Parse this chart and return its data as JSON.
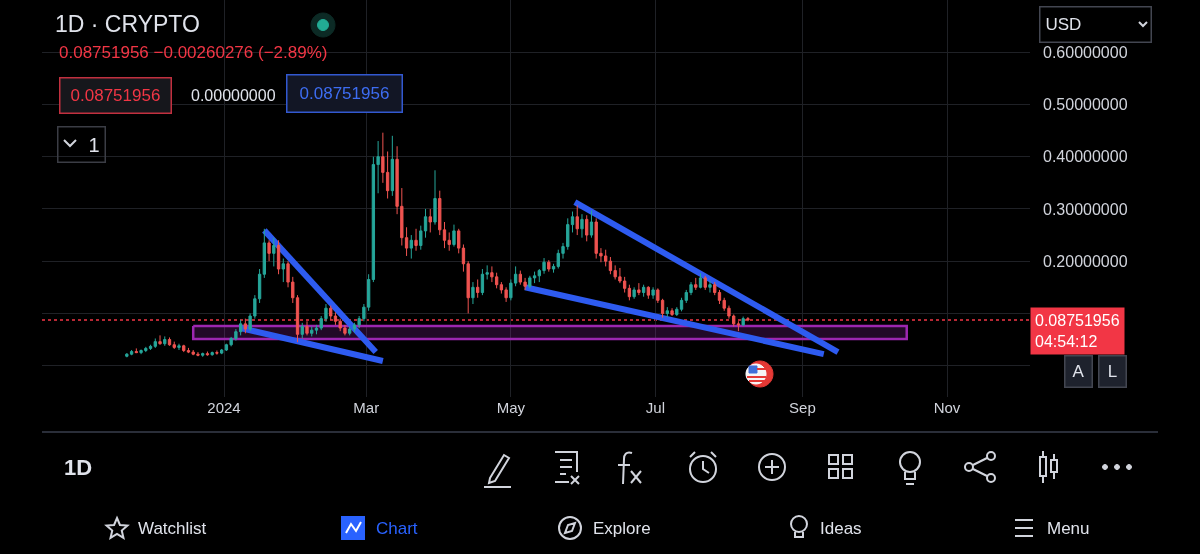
{
  "chart_data": {
    "type": "candlestick",
    "title": "1D · CRYPTO",
    "subtitle": "0.08751956 −0.00260276 (−2.89%)",
    "x": [
      "2023-11-21",
      "2023-11-23",
      "2023-11-25",
      "2023-11-27",
      "2023-11-29",
      "2023-12-01",
      "2023-12-03",
      "2023-12-05",
      "2023-12-07",
      "2023-12-09",
      "2023-12-11",
      "2023-12-13",
      "2023-12-15",
      "2023-12-17",
      "2023-12-19",
      "2023-12-21",
      "2023-12-23",
      "2023-12-25",
      "2023-12-27",
      "2023-12-29",
      "2023-12-31",
      "2024-01-02",
      "2024-01-04",
      "2024-01-06",
      "2024-01-08",
      "2024-01-10",
      "2024-01-12",
      "2024-01-14",
      "2024-01-16",
      "2024-01-18",
      "2024-01-20",
      "2024-01-22",
      "2024-01-24",
      "2024-01-26",
      "2024-01-28",
      "2024-01-30",
      "2024-02-01",
      "2024-02-03",
      "2024-02-05",
      "2024-02-07",
      "2024-02-09",
      "2024-02-11",
      "2024-02-13",
      "2024-02-15",
      "2024-02-17",
      "2024-02-19",
      "2024-02-21",
      "2024-02-23",
      "2024-02-25",
      "2024-02-27",
      "2024-02-29",
      "2024-03-02",
      "2024-03-04",
      "2024-03-06",
      "2024-03-08",
      "2024-03-10",
      "2024-03-12",
      "2024-03-14",
      "2024-03-16",
      "2024-03-18",
      "2024-03-20",
      "2024-03-22",
      "2024-03-24",
      "2024-03-26",
      "2024-03-28",
      "2024-03-30",
      "2024-04-01",
      "2024-04-03",
      "2024-04-05",
      "2024-04-07",
      "2024-04-09",
      "2024-04-11",
      "2024-04-13",
      "2024-04-15",
      "2024-04-17",
      "2024-04-19",
      "2024-04-21",
      "2024-04-23",
      "2024-04-25",
      "2024-04-27",
      "2024-04-29",
      "2024-05-01",
      "2024-05-03",
      "2024-05-05",
      "2024-05-07",
      "2024-05-09",
      "2024-05-11",
      "2024-05-13",
      "2024-05-15",
      "2024-05-17",
      "2024-05-19",
      "2024-05-21",
      "2024-05-23",
      "2024-05-25",
      "2024-05-27",
      "2024-05-29",
      "2024-05-31",
      "2024-06-02",
      "2024-06-04",
      "2024-06-06",
      "2024-06-08",
      "2024-06-10",
      "2024-06-12",
      "2024-06-14",
      "2024-06-16",
      "2024-06-18",
      "2024-06-20",
      "2024-06-22",
      "2024-06-24",
      "2024-06-26",
      "2024-06-28",
      "2024-06-30",
      "2024-07-02",
      "2024-07-04",
      "2024-07-06",
      "2024-07-08",
      "2024-07-10",
      "2024-07-12",
      "2024-07-14",
      "2024-07-16",
      "2024-07-18",
      "2024-07-20",
      "2024-07-22",
      "2024-07-24",
      "2024-07-26",
      "2024-07-28",
      "2024-07-30",
      "2024-08-01",
      "2024-08-03",
      "2024-08-05",
      "2024-08-07",
      "2024-08-09"
    ],
    "ohlc": [
      [
        0.018,
        0.024,
        0.016,
        0.022
      ],
      [
        0.022,
        0.03,
        0.02,
        0.027
      ],
      [
        0.027,
        0.033,
        0.024,
        0.025
      ],
      [
        0.025,
        0.031,
        0.022,
        0.029
      ],
      [
        0.029,
        0.036,
        0.026,
        0.033
      ],
      [
        0.033,
        0.04,
        0.03,
        0.037
      ],
      [
        0.037,
        0.052,
        0.034,
        0.046
      ],
      [
        0.046,
        0.058,
        0.04,
        0.042
      ],
      [
        0.042,
        0.056,
        0.038,
        0.05
      ],
      [
        0.05,
        0.054,
        0.038,
        0.04
      ],
      [
        0.04,
        0.046,
        0.032,
        0.035
      ],
      [
        0.035,
        0.042,
        0.03,
        0.038
      ],
      [
        0.038,
        0.04,
        0.026,
        0.029
      ],
      [
        0.029,
        0.034,
        0.024,
        0.026
      ],
      [
        0.026,
        0.03,
        0.02,
        0.022
      ],
      [
        0.022,
        0.026,
        0.018,
        0.02
      ],
      [
        0.02,
        0.025,
        0.017,
        0.023
      ],
      [
        0.023,
        0.027,
        0.019,
        0.021
      ],
      [
        0.021,
        0.027,
        0.019,
        0.025
      ],
      [
        0.025,
        0.029,
        0.021,
        0.024
      ],
      [
        0.024,
        0.032,
        0.022,
        0.03
      ],
      [
        0.03,
        0.042,
        0.028,
        0.04
      ],
      [
        0.04,
        0.055,
        0.037,
        0.052
      ],
      [
        0.052,
        0.07,
        0.048,
        0.065
      ],
      [
        0.065,
        0.088,
        0.058,
        0.08
      ],
      [
        0.08,
        0.09,
        0.062,
        0.07
      ],
      [
        0.07,
        0.1,
        0.066,
        0.095
      ],
      [
        0.095,
        0.135,
        0.09,
        0.128
      ],
      [
        0.128,
        0.185,
        0.12,
        0.175
      ],
      [
        0.175,
        0.262,
        0.168,
        0.235
      ],
      [
        0.235,
        0.24,
        0.2,
        0.215
      ],
      [
        0.215,
        0.245,
        0.19,
        0.23
      ],
      [
        0.23,
        0.24,
        0.175,
        0.185
      ],
      [
        0.185,
        0.205,
        0.16,
        0.195
      ],
      [
        0.195,
        0.2,
        0.15,
        0.16
      ],
      [
        0.16,
        0.17,
        0.12,
        0.13
      ],
      [
        0.13,
        0.135,
        0.045,
        0.06
      ],
      [
        0.06,
        0.082,
        0.052,
        0.075
      ],
      [
        0.075,
        0.085,
        0.058,
        0.062
      ],
      [
        0.062,
        0.075,
        0.056,
        0.068
      ],
      [
        0.068,
        0.078,
        0.06,
        0.072
      ],
      [
        0.072,
        0.095,
        0.068,
        0.09
      ],
      [
        0.09,
        0.118,
        0.084,
        0.11
      ],
      [
        0.11,
        0.115,
        0.088,
        0.095
      ],
      [
        0.095,
        0.102,
        0.078,
        0.085
      ],
      [
        0.085,
        0.09,
        0.066,
        0.072
      ],
      [
        0.072,
        0.078,
        0.058,
        0.062
      ],
      [
        0.062,
        0.075,
        0.058,
        0.07
      ],
      [
        0.07,
        0.082,
        0.064,
        0.078
      ],
      [
        0.078,
        0.095,
        0.072,
        0.09
      ],
      [
        0.09,
        0.118,
        0.085,
        0.112
      ],
      [
        0.112,
        0.175,
        0.105,
        0.165
      ],
      [
        0.165,
        0.4,
        0.16,
        0.385
      ],
      [
        0.385,
        0.43,
        0.33,
        0.4
      ],
      [
        0.4,
        0.446,
        0.35,
        0.37
      ],
      [
        0.37,
        0.41,
        0.32,
        0.335
      ],
      [
        0.335,
        0.44,
        0.325,
        0.395
      ],
      [
        0.395,
        0.42,
        0.29,
        0.305
      ],
      [
        0.305,
        0.34,
        0.23,
        0.245
      ],
      [
        0.245,
        0.265,
        0.21,
        0.225
      ],
      [
        0.225,
        0.25,
        0.205,
        0.24
      ],
      [
        0.24,
        0.262,
        0.22,
        0.23
      ],
      [
        0.23,
        0.268,
        0.222,
        0.258
      ],
      [
        0.258,
        0.3,
        0.245,
        0.285
      ],
      [
        0.285,
        0.3,
        0.255,
        0.275
      ],
      [
        0.275,
        0.374,
        0.27,
        0.32
      ],
      [
        0.32,
        0.335,
        0.25,
        0.26
      ],
      [
        0.26,
        0.275,
        0.225,
        0.24
      ],
      [
        0.24,
        0.255,
        0.22,
        0.232
      ],
      [
        0.232,
        0.27,
        0.228,
        0.258
      ],
      [
        0.258,
        0.262,
        0.215,
        0.225
      ],
      [
        0.225,
        0.232,
        0.18,
        0.195
      ],
      [
        0.195,
        0.2,
        0.1,
        0.13
      ],
      [
        0.13,
        0.16,
        0.118,
        0.15
      ],
      [
        0.15,
        0.165,
        0.13,
        0.14
      ],
      [
        0.14,
        0.185,
        0.135,
        0.175
      ],
      [
        0.175,
        0.192,
        0.165,
        0.178
      ],
      [
        0.178,
        0.19,
        0.16,
        0.17
      ],
      [
        0.17,
        0.178,
        0.148,
        0.155
      ],
      [
        0.155,
        0.16,
        0.138,
        0.145
      ],
      [
        0.145,
        0.15,
        0.122,
        0.13
      ],
      [
        0.13,
        0.165,
        0.125,
        0.158
      ],
      [
        0.158,
        0.19,
        0.152,
        0.175
      ],
      [
        0.175,
        0.182,
        0.155,
        0.16
      ],
      [
        0.16,
        0.168,
        0.145,
        0.152
      ],
      [
        0.152,
        0.172,
        0.148,
        0.168
      ],
      [
        0.168,
        0.18,
        0.158,
        0.172
      ],
      [
        0.172,
        0.185,
        0.16,
        0.182
      ],
      [
        0.182,
        0.206,
        0.176,
        0.198
      ],
      [
        0.198,
        0.202,
        0.18,
        0.185
      ],
      [
        0.185,
        0.195,
        0.178,
        0.19
      ],
      [
        0.19,
        0.222,
        0.186,
        0.215
      ],
      [
        0.215,
        0.235,
        0.205,
        0.228
      ],
      [
        0.228,
        0.282,
        0.222,
        0.27
      ],
      [
        0.27,
        0.295,
        0.255,
        0.285
      ],
      [
        0.285,
        0.307,
        0.25,
        0.262
      ],
      [
        0.262,
        0.29,
        0.245,
        0.28
      ],
      [
        0.28,
        0.288,
        0.238,
        0.25
      ],
      [
        0.25,
        0.297,
        0.245,
        0.275
      ],
      [
        0.275,
        0.282,
        0.205,
        0.215
      ],
      [
        0.215,
        0.225,
        0.198,
        0.21
      ],
      [
        0.21,
        0.222,
        0.19,
        0.2
      ],
      [
        0.2,
        0.208,
        0.175,
        0.182
      ],
      [
        0.182,
        0.192,
        0.165,
        0.17
      ],
      [
        0.17,
        0.187,
        0.158,
        0.162
      ],
      [
        0.162,
        0.17,
        0.14,
        0.148
      ],
      [
        0.148,
        0.155,
        0.125,
        0.132
      ],
      [
        0.132,
        0.15,
        0.128,
        0.145
      ],
      [
        0.145,
        0.158,
        0.135,
        0.14
      ],
      [
        0.14,
        0.155,
        0.132,
        0.15
      ],
      [
        0.15,
        0.152,
        0.128,
        0.135
      ],
      [
        0.135,
        0.15,
        0.128,
        0.145
      ],
      [
        0.145,
        0.148,
        0.12,
        0.125
      ],
      [
        0.125,
        0.128,
        0.092,
        0.1
      ],
      [
        0.1,
        0.112,
        0.093,
        0.105
      ],
      [
        0.105,
        0.11,
        0.095,
        0.098
      ],
      [
        0.098,
        0.112,
        0.095,
        0.108
      ],
      [
        0.108,
        0.13,
        0.104,
        0.125
      ],
      [
        0.125,
        0.145,
        0.12,
        0.14
      ],
      [
        0.14,
        0.16,
        0.135,
        0.155
      ],
      [
        0.155,
        0.168,
        0.145,
        0.15
      ],
      [
        0.15,
        0.177,
        0.148,
        0.168
      ],
      [
        0.168,
        0.172,
        0.145,
        0.15
      ],
      [
        0.15,
        0.162,
        0.14,
        0.155
      ],
      [
        0.155,
        0.16,
        0.135,
        0.14
      ],
      [
        0.14,
        0.145,
        0.118,
        0.125
      ],
      [
        0.125,
        0.13,
        0.105,
        0.11
      ],
      [
        0.11,
        0.115,
        0.09,
        0.095
      ],
      [
        0.095,
        0.098,
        0.075,
        0.08
      ],
      [
        0.08,
        0.085,
        0.066,
        0.078
      ],
      [
        0.078,
        0.094,
        0.076,
        0.09
      ],
      [
        0.09,
        0.093,
        0.085,
        0.0875
      ]
    ],
    "colors": [
      "#26a69a",
      "#26a69a",
      "#ef5350",
      "#26a69a",
      "#26a69a",
      "#26a69a",
      "#26a69a",
      "#ef5350",
      "#26a69a",
      "#ef5350",
      "#ef5350",
      "#26a69a",
      "#ef5350",
      "#ef5350",
      "#ef5350",
      "#ef5350",
      "#26a69a",
      "#ef5350",
      "#26a69a",
      "#ef5350",
      "#26a69a",
      "#26a69a",
      "#26a69a",
      "#26a69a",
      "#26a69a",
      "#ef5350",
      "#26a69a",
      "#26a69a",
      "#26a69a",
      "#26a69a",
      "#ef5350",
      "#26a69a",
      "#ef5350",
      "#26a69a",
      "#ef5350",
      "#ef5350",
      "#ef5350",
      "#26a69a",
      "#ef5350",
      "#26a69a",
      "#26a69a",
      "#26a69a",
      "#26a69a",
      "#ef5350",
      "#ef5350",
      "#ef5350",
      "#ef5350",
      "#26a69a",
      "#26a69a",
      "#26a69a",
      "#26a69a",
      "#26a69a",
      "#26a69a",
      "#26a69a",
      "#ef5350",
      "#ef5350",
      "#26a69a",
      "#ef5350",
      "#ef5350",
      "#ef5350",
      "#26a69a",
      "#ef5350",
      "#26a69a",
      "#26a69a",
      "#ef5350",
      "#26a69a",
      "#ef5350",
      "#ef5350",
      "#ef5350",
      "#26a69a",
      "#ef5350",
      "#ef5350",
      "#ef5350",
      "#26a69a",
      "#ef5350",
      "#26a69a",
      "#26a69a",
      "#ef5350",
      "#ef5350",
      "#ef5350",
      "#ef5350",
      "#26a69a",
      "#26a69a",
      "#ef5350",
      "#ef5350",
      "#26a69a",
      "#26a69a",
      "#26a69a",
      "#26a69a",
      "#ef5350",
      "#26a69a",
      "#26a69a",
      "#26a69a",
      "#26a69a",
      "#26a69a",
      "#ef5350",
      "#26a69a",
      "#ef5350",
      "#26a69a",
      "#ef5350",
      "#ef5350",
      "#ef5350",
      "#ef5350",
      "#ef5350",
      "#ef5350",
      "#ef5350",
      "#ef5350",
      "#26a69a",
      "#ef5350",
      "#26a69a",
      "#ef5350",
      "#26a69a",
      "#ef5350",
      "#ef5350",
      "#26a69a",
      "#ef5350",
      "#26a69a",
      "#26a69a",
      "#26a69a",
      "#26a69a",
      "#ef5350",
      "#26a69a",
      "#ef5350",
      "#26a69a",
      "#ef5350",
      "#ef5350",
      "#ef5350",
      "#ef5350",
      "#ef5350",
      "#ef5350",
      "#26a69a",
      "#ef5350"
    ],
    "series": [
      {
        "type": "area",
        "color": "#9c27b0",
        "x": [
          "2023-12-19",
          "2024-10-15",
          "2024-10-15",
          "2023-12-19",
          "2023-12-19"
        ],
        "values": [
          0.076,
          0.076,
          0.051,
          0.051,
          0.076
        ]
      },
      {
        "type": "line",
        "color": "#2e5bf0",
        "x": [
          "2024-01-18",
          "2024-03-05"
        ],
        "values": [
          0.259,
          0.026
        ]
      },
      {
        "type": "line",
        "color": "#2e5bf0",
        "x": [
          "2024-01-08",
          "2024-03-08"
        ],
        "values": [
          0.072,
          0.009
        ]
      },
      {
        "type": "line",
        "color": "#2e5bf0",
        "x": [
          "2024-05-28",
          "2024-09-16"
        ],
        "values": [
          0.313,
          0.026
        ]
      },
      {
        "type": "line",
        "color": "#2e5bf0",
        "x": [
          "2024-05-07",
          "2024-09-10"
        ],
        "values": [
          0.15,
          0.022
        ]
      }
    ],
    "ref_lines": [
      {
        "axis": "y",
        "value": 0.08751956,
        "label": "0.08751956\n04:54:12",
        "color": "#f23645",
        "line_style": "dotted"
      }
    ],
    "xlim": [
      "2023-10-16T05:00",
      "2024-12-06"
    ],
    "xticks": [
      {
        "value": "2024-01-01",
        "label": "2024"
      },
      {
        "value": "2024-03-01",
        "label": "Mar"
      },
      {
        "value": "2024-05-01",
        "label": "May"
      },
      {
        "value": "2024-07-01",
        "label": "Jul"
      },
      {
        "value": "2024-09-01",
        "label": "Sep"
      },
      {
        "value": "2024-11-01",
        "label": "Nov"
      }
    ],
    "ylim": [
      -0.06,
      0.7
    ],
    "yticks": [
      {
        "value": 0,
        "label": null
      },
      {
        "value": 0.1,
        "label": null
      },
      {
        "value": 0.2,
        "label": "0.20000000"
      },
      {
        "value": 0.3,
        "label": "0.30000000"
      },
      {
        "value": 0.4,
        "label": "0.40000000"
      },
      {
        "value": 0.5,
        "label": "0.50000000"
      },
      {
        "value": 0.6,
        "label": "0.60000000"
      }
    ],
    "grid": true,
    "annotations": [
      "0.08751956",
      "0.00000000",
      "0.08751956",
      "1",
      "USD",
      "A",
      "L",
      "1D",
      "Watchlist",
      "Chart",
      "Explore",
      "Ideas",
      "Menu"
    ]
  }
}
